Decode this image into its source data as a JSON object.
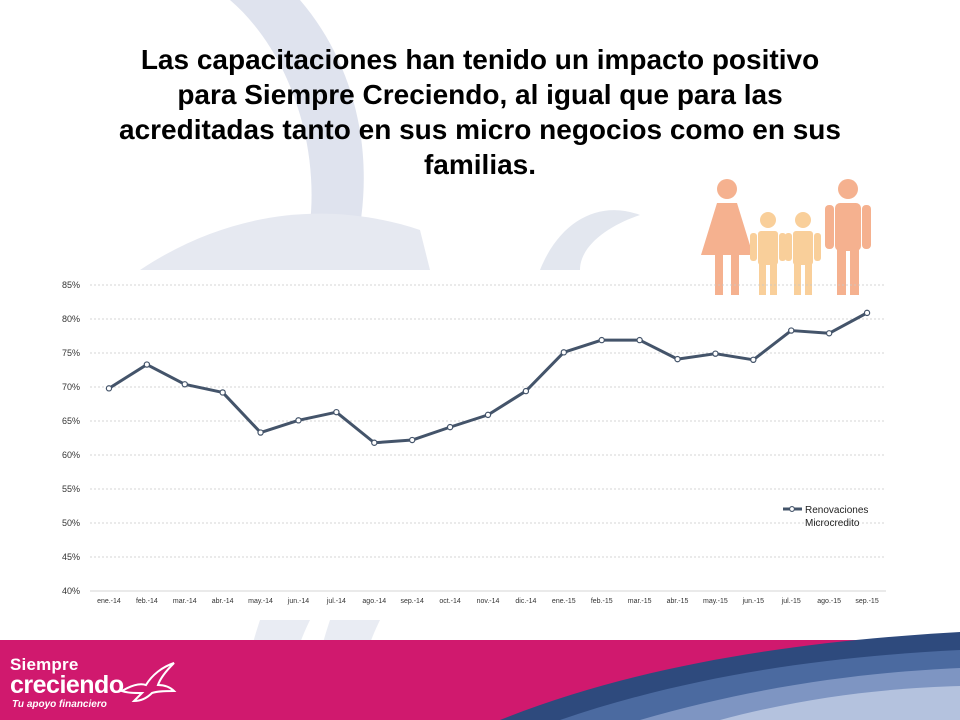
{
  "title": {
    "line1": "Las capacitaciones han tenido un impacto positivo",
    "line2": "para Siempre Creciendo, al igual que para las",
    "line3": "acreditadas tanto en sus micro negocios como en sus",
    "line4": "familias."
  },
  "colors": {
    "line": "#44546a",
    "brand_magenta": "#d0196e",
    "family_adult": "#f5b18f",
    "family_child": "#f9cf9a",
    "decor": "#dfe3ee"
  },
  "icons": {
    "family": "family-icon",
    "logo_bird": "hummingbird-icon"
  },
  "chart_data": {
    "type": "line",
    "categories": [
      "ene.-14",
      "feb.-14",
      "mar.-14",
      "abr.-14",
      "may.-14",
      "jun.-14",
      "jul.-14",
      "ago.-14",
      "sep.-14",
      "oct.-14",
      "nov.-14",
      "dic.-14",
      "ene.-15",
      "feb.-15",
      "mar.-15",
      "abr.-15",
      "may.-15",
      "jun.-15",
      "jul.-15",
      "ago.-15",
      "sep.-15"
    ],
    "series": [
      {
        "name": "Renovaciones Microcredito",
        "values": [
          69.8,
          73.3,
          70.4,
          69.2,
          63.3,
          65.1,
          66.3,
          61.8,
          62.2,
          64.1,
          65.9,
          69.4,
          75.1,
          76.9,
          76.9,
          74.1,
          74.9,
          74.0,
          78.3,
          77.9,
          80.9
        ]
      }
    ],
    "yticks": [
      "40%",
      "45%",
      "50%",
      "55%",
      "60%",
      "65%",
      "70%",
      "75%",
      "80%",
      "85%"
    ],
    "ylim": [
      40,
      85
    ],
    "legend_lines": [
      "Renovaciones",
      "Microcredito"
    ],
    "legend_position": "right",
    "grid": true,
    "title": "",
    "xlabel": "",
    "ylabel": ""
  },
  "logo": {
    "line1": "Siempre",
    "line2": "creciendo",
    "tagline": "Tu apoyo financiero"
  }
}
